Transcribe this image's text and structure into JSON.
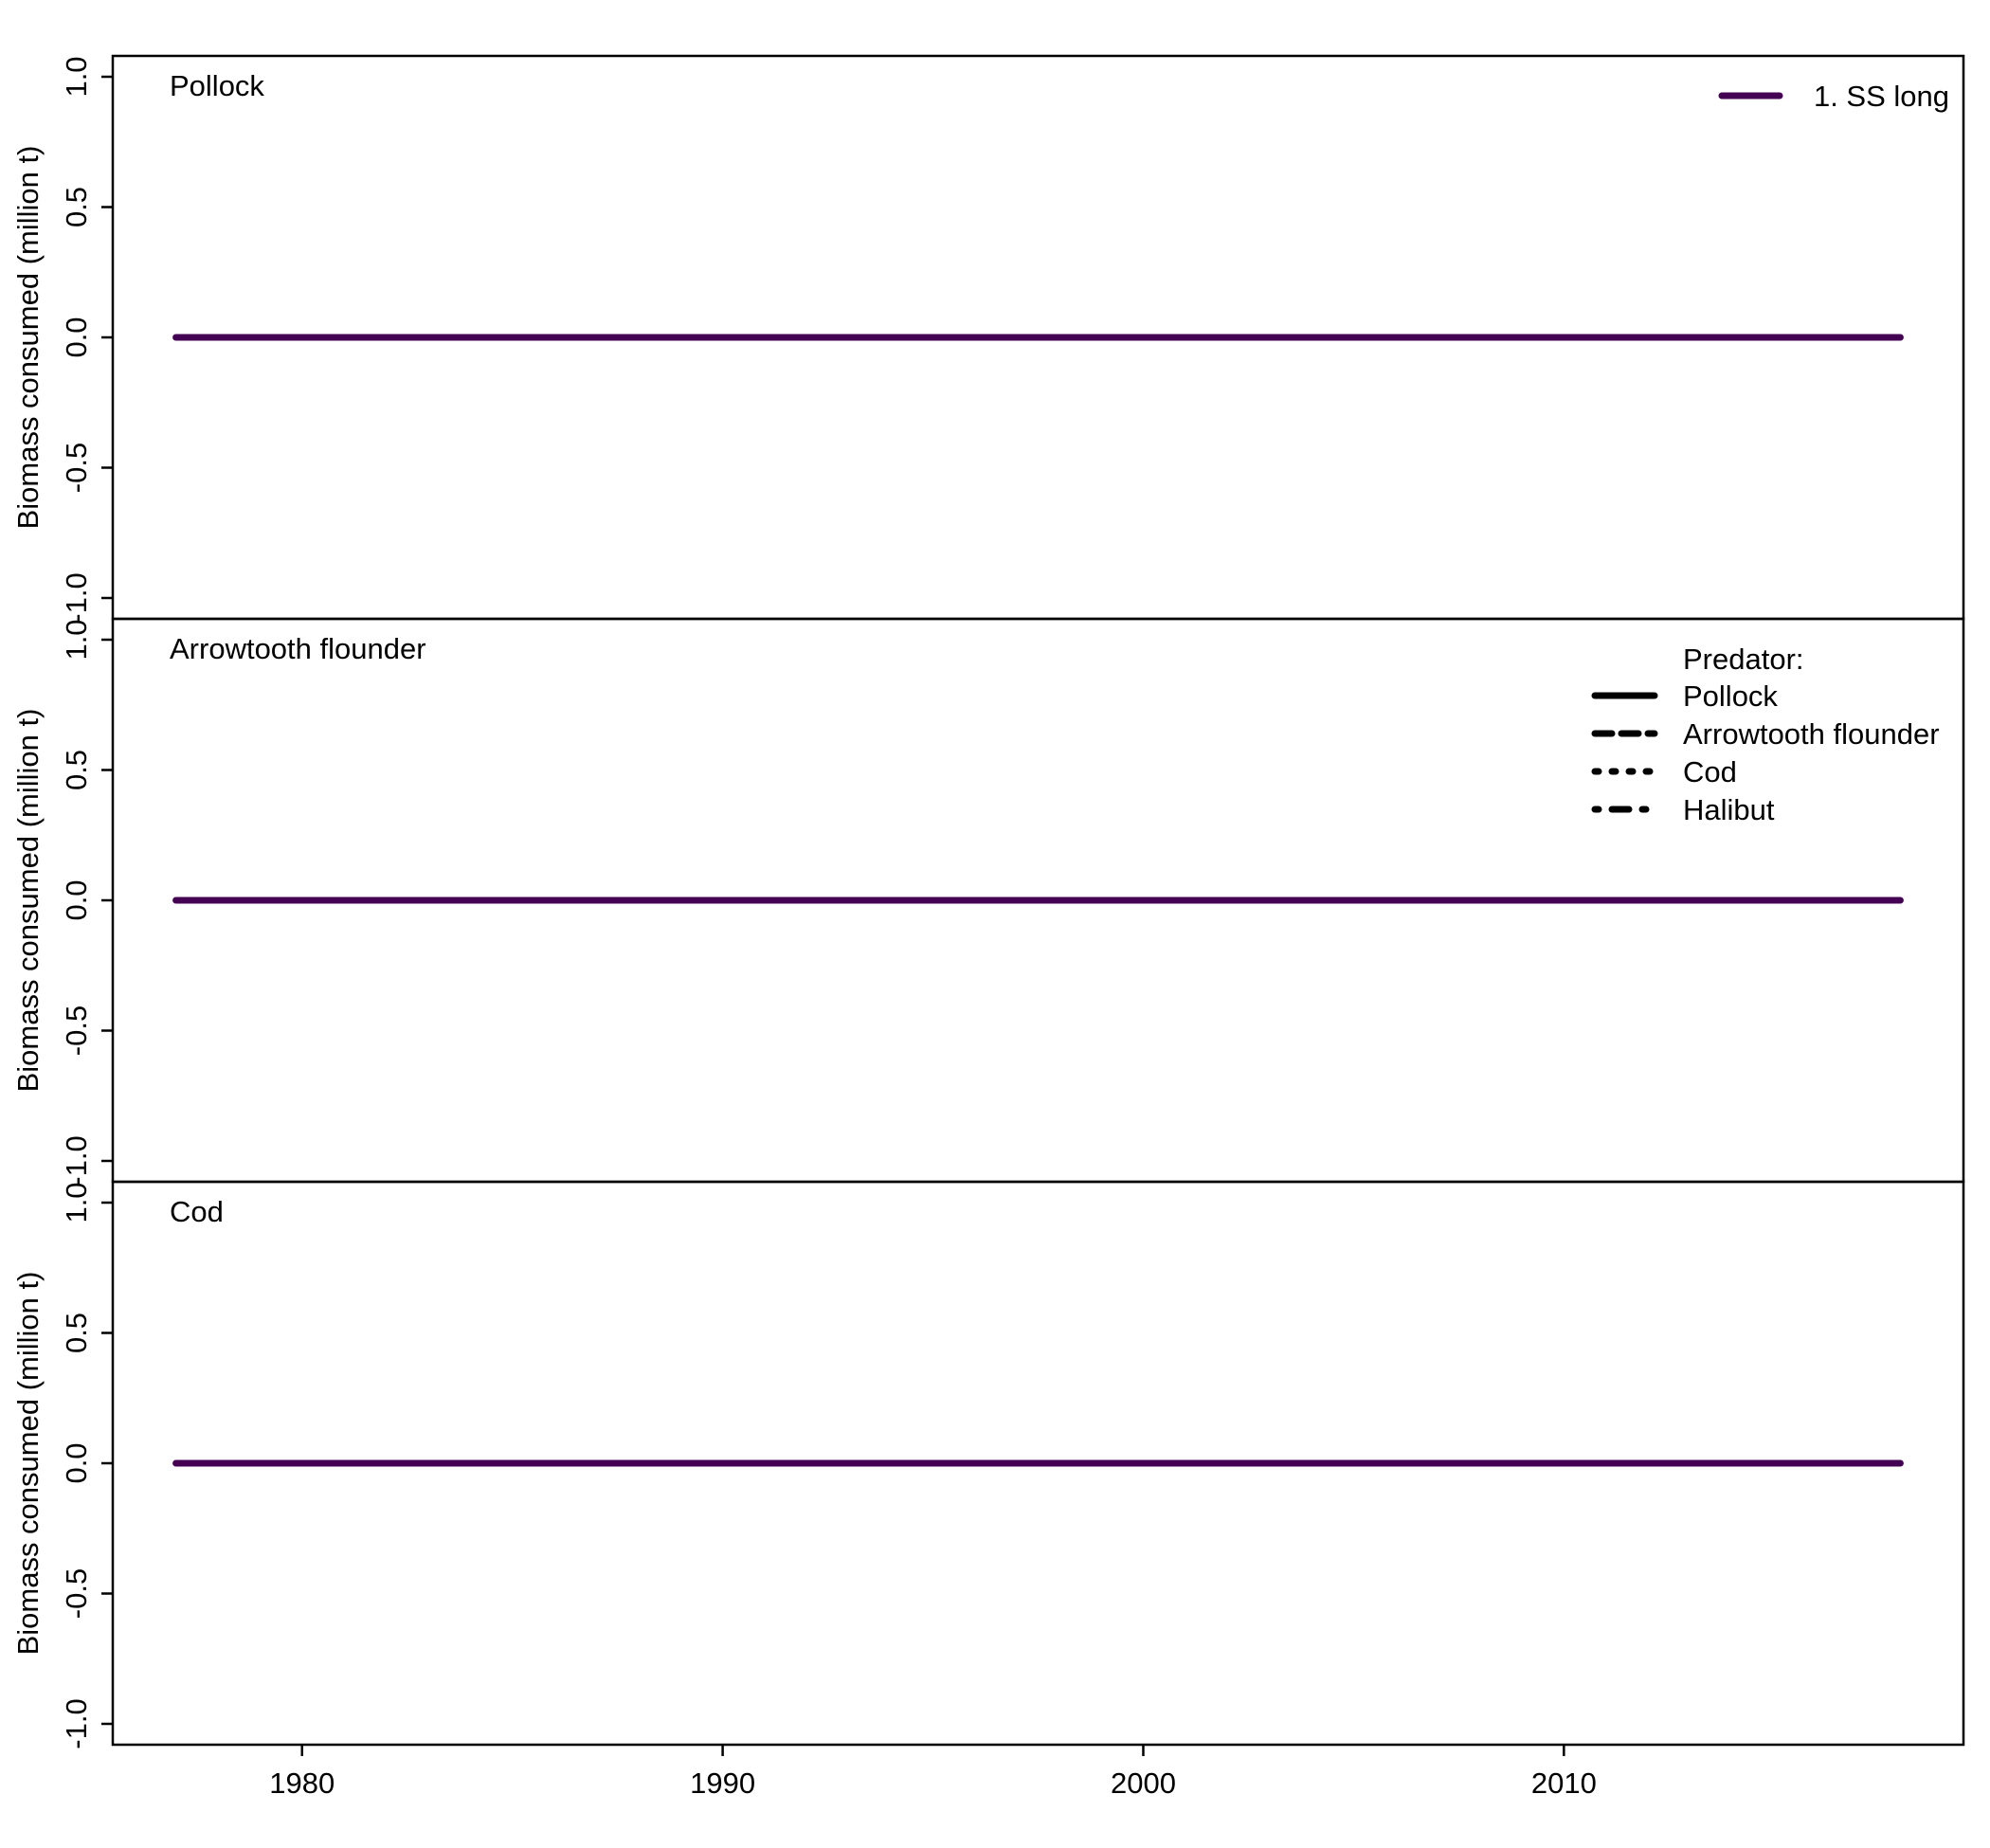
{
  "colors": {
    "series": "#440154",
    "axis": "#000000",
    "background": "#ffffff"
  },
  "chart_data": {
    "type": "line",
    "ylabel": "Biomass consumed (million t)",
    "xlim": [
      1975.5,
      2019.5
    ],
    "ylim": [
      -1.08,
      1.08
    ],
    "x_ticks": [
      1980,
      1990,
      2000,
      2010
    ],
    "x_tick_labels": [
      "1980",
      "1990",
      "2000",
      "2010"
    ],
    "y_ticks": [
      -1.0,
      -0.5,
      0.0,
      0.5,
      1.0
    ],
    "y_tick_labels": [
      "-1.0",
      "-0.5",
      "0.0",
      "0.5",
      "1.0"
    ],
    "grid": false,
    "x": [
      1977,
      1978,
      1979,
      1980,
      1981,
      1982,
      1983,
      1984,
      1985,
      1986,
      1987,
      1988,
      1989,
      1990,
      1991,
      1992,
      1993,
      1994,
      1995,
      1996,
      1997,
      1998,
      1999,
      2000,
      2001,
      2002,
      2003,
      2004,
      2005,
      2006,
      2007,
      2008,
      2009,
      2010,
      2011,
      2012,
      2013,
      2014,
      2015,
      2016,
      2017,
      2018
    ],
    "panels": [
      {
        "label": "Pollock",
        "series": [
          {
            "name": "1. SS long",
            "values": [
              0,
              0,
              0,
              0,
              0,
              0,
              0,
              0,
              0,
              0,
              0,
              0,
              0,
              0,
              0,
              0,
              0,
              0,
              0,
              0,
              0,
              0,
              0,
              0,
              0,
              0,
              0,
              0,
              0,
              0,
              0,
              0,
              0,
              0,
              0,
              0,
              0,
              0,
              0,
              0,
              0,
              0
            ]
          }
        ]
      },
      {
        "label": "Arrowtooth flounder",
        "series": [
          {
            "name": "1. SS long",
            "values": [
              0,
              0,
              0,
              0,
              0,
              0,
              0,
              0,
              0,
              0,
              0,
              0,
              0,
              0,
              0,
              0,
              0,
              0,
              0,
              0,
              0,
              0,
              0,
              0,
              0,
              0,
              0,
              0,
              0,
              0,
              0,
              0,
              0,
              0,
              0,
              0,
              0,
              0,
              0,
              0,
              0,
              0
            ]
          }
        ]
      },
      {
        "label": "Cod",
        "series": [
          {
            "name": "1. SS long",
            "values": [
              0,
              0,
              0,
              0,
              0,
              0,
              0,
              0,
              0,
              0,
              0,
              0,
              0,
              0,
              0,
              0,
              0,
              0,
              0,
              0,
              0,
              0,
              0,
              0,
              0,
              0,
              0,
              0,
              0,
              0,
              0,
              0,
              0,
              0,
              0,
              0,
              0,
              0,
              0,
              0,
              0,
              0
            ]
          }
        ]
      }
    ],
    "legend_model": {
      "placement": "top-right",
      "entries": [
        {
          "name": "1. SS long",
          "line": "solid"
        }
      ]
    },
    "legend_predator": {
      "placement": "top-right",
      "title": "Predator:",
      "entries": [
        {
          "name": "Pollock",
          "line": "solid"
        },
        {
          "name": "Arrowtooth flounder",
          "line": "dashed"
        },
        {
          "name": "Cod",
          "line": "dotted"
        },
        {
          "name": "Halibut",
          "line": "dotdash"
        }
      ]
    }
  }
}
